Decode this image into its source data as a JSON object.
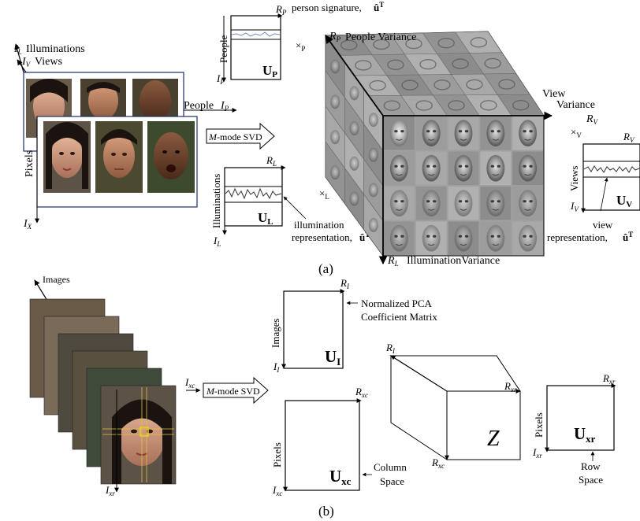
{
  "panel_a": {
    "caption": "(a)",
    "illuminations_label": "Illuminations",
    "illuminations_sym": "I",
    "illuminations_sub": "L",
    "views_label": "Views",
    "views_sym": "I",
    "views_sub": "V",
    "people_label": "People",
    "people_sym": "I",
    "people_sub": "P",
    "pixels_label": "Pixels",
    "pixels_sym": "I",
    "pixels_sub": "X",
    "svd_label": "M-mode SVD",
    "svd_m": "M",
    "svd_rest": "-mode SVD",
    "up": {
      "axis_label": "People",
      "bottom_sym": "I",
      "bottom_sub": "P",
      "top_sym": "R",
      "top_sub": "P",
      "matrix_sym": "U",
      "matrix_sub": "P",
      "annotation": "person signature,",
      "times": "×",
      "times_sub": "P"
    },
    "ul": {
      "axis_label": "Illuminations",
      "bottom_sym": "I",
      "bottom_sub": "L",
      "top_sym": "R",
      "top_sub": "L",
      "matrix_sym": "U",
      "matrix_sub": "L",
      "annotation_1": "illumination",
      "annotation_2": "representation,",
      "times": "×",
      "times_sub": "L"
    },
    "uv": {
      "axis_label": "Views",
      "bottom_sym": "I",
      "bottom_sub": "V",
      "top_sym": "R",
      "top_sub": "V",
      "matrix_sym": "U",
      "matrix_sub": "V",
      "annotation_1": "view",
      "annotation_2": "representation,",
      "times": "×",
      "times_sub": "V"
    },
    "hat_u": "û",
    "hat_T": "T",
    "cube": {
      "people_variance": "People Variance",
      "people_sym": "R",
      "people_sub": "P",
      "view_variance_1": "View",
      "view_variance_2": "Variance",
      "view_sym": "R",
      "view_sub": "V",
      "illum_variance": "IlluminationVariance",
      "illum_sym": "R",
      "illum_sub": "L"
    }
  },
  "panel_b": {
    "caption": "(b)",
    "images_label": "Images",
    "ixc_sym": "I",
    "ixc_sub": "xc",
    "ixr_sym": "I",
    "ixr_sub": "xr",
    "svd_m": "M",
    "svd_rest": "-mode SVD",
    "ui": {
      "axis_label": "Images",
      "bottom_sym": "I",
      "bottom_sub": "I",
      "top_sym": "R",
      "top_sub": "I",
      "matrix_sym": "U",
      "matrix_sub": "I",
      "note_1": "Normalized PCA",
      "note_2": "Coefficient Matrix"
    },
    "uxc": {
      "axis_label": "Pixels",
      "bottom_sym": "I",
      "bottom_sub": "xc",
      "top_sym": "R",
      "top_sub": "xc",
      "matrix_sym": "U",
      "matrix_sub": "xc",
      "note_1": "Column",
      "note_2": "Space"
    },
    "core": {
      "sym": "Z",
      "r_i_sym": "R",
      "r_i_sub": "I",
      "r_xr_sym": "R",
      "r_xr_sub": "xr",
      "r_xc_sym": "R",
      "r_xc_sub": "xc"
    },
    "uxr": {
      "axis_label": "Pixels",
      "bottom_sym": "I",
      "bottom_sub": "xr",
      "top_sym": "R",
      "top_sub": "xr",
      "matrix_sym": "U",
      "matrix_sub": "xr",
      "note_1": "Row",
      "note_2": "Space"
    }
  }
}
